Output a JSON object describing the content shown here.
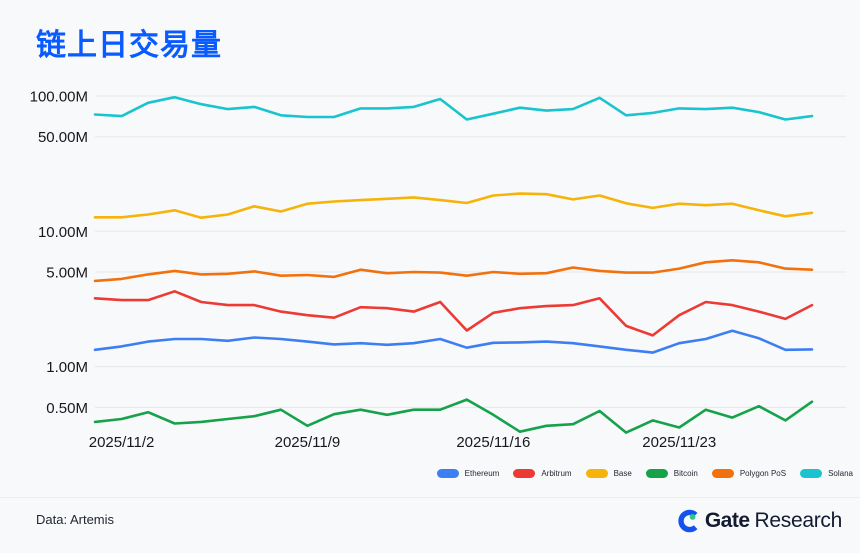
{
  "page": {
    "title": "链上日交易量",
    "background_color": "#F8F9FB",
    "title_color": "#0A5BFF"
  },
  "chart_data": {
    "type": "line",
    "y_scale": "log",
    "grid": "horizontal-only",
    "legend_position": "bottom-right",
    "value_unit": "M",
    "dates": [
      "2025/11/1",
      "2025/11/2",
      "2025/11/3",
      "2025/11/4",
      "2025/11/5",
      "2025/11/6",
      "2025/11/7",
      "2025/11/8",
      "2025/11/9",
      "2025/11/10",
      "2025/11/11",
      "2025/11/12",
      "2025/11/13",
      "2025/11/14",
      "2025/11/15",
      "2025/11/16",
      "2025/11/17",
      "2025/11/18",
      "2025/11/19",
      "2025/11/20",
      "2025/11/21",
      "2025/11/22",
      "2025/11/23",
      "2025/11/24",
      "2025/11/25",
      "2025/11/26",
      "2025/11/27",
      "2025/11/28"
    ],
    "x_ticks": [
      {
        "label": "2025/11/2",
        "index": 1
      },
      {
        "label": "2025/11/9",
        "index": 8
      },
      {
        "label": "2025/11/16",
        "index": 15
      },
      {
        "label": "2025/11/23",
        "index": 22
      }
    ],
    "y_ticks": [
      {
        "label": "100.00M",
        "value_m": 100
      },
      {
        "label": "50.00M",
        "value_m": 50
      },
      {
        "label": "10.00M",
        "value_m": 10
      },
      {
        "label": "5.00M",
        "value_m": 5
      },
      {
        "label": "1.00M",
        "value_m": 1
      },
      {
        "label": "0.50M",
        "value_m": 0.5
      }
    ],
    "series": [
      {
        "name": "Ethereum",
        "color": "#3D7FF2",
        "values_m": [
          1.33,
          1.41,
          1.53,
          1.6,
          1.6,
          1.55,
          1.64,
          1.6,
          1.53,
          1.46,
          1.49,
          1.45,
          1.49,
          1.6,
          1.38,
          1.5,
          1.51,
          1.53,
          1.49,
          1.41,
          1.33,
          1.27,
          1.49,
          1.6,
          1.84,
          1.62,
          1.33,
          1.34
        ]
      },
      {
        "name": "Arbitrum",
        "color": "#EC3B35",
        "values_m": [
          3.2,
          3.1,
          3.1,
          3.6,
          3.0,
          2.85,
          2.85,
          2.55,
          2.4,
          2.3,
          2.75,
          2.7,
          2.55,
          3.0,
          1.85,
          2.5,
          2.7,
          2.8,
          2.85,
          3.2,
          2.0,
          1.7,
          2.4,
          3.0,
          2.85,
          2.55,
          2.25,
          2.85
        ]
      },
      {
        "name": "Base",
        "color": "#F6B40A",
        "values_m": [
          12.7,
          12.7,
          13.3,
          14.3,
          12.6,
          13.3,
          15.3,
          14.0,
          16.0,
          16.6,
          17.0,
          17.4,
          17.8,
          17.0,
          16.2,
          18.4,
          19.0,
          18.8,
          17.2,
          18.4,
          16.1,
          14.9,
          16.0,
          15.6,
          16.0,
          14.3,
          12.9,
          13.7
        ]
      },
      {
        "name": "Bitcoin",
        "color": "#16A24A",
        "values_m": [
          0.39,
          0.41,
          0.46,
          0.38,
          0.39,
          0.41,
          0.43,
          0.48,
          0.365,
          0.445,
          0.48,
          0.44,
          0.48,
          0.48,
          0.57,
          0.44,
          0.33,
          0.365,
          0.375,
          0.47,
          0.325,
          0.4,
          0.355,
          0.48,
          0.42,
          0.51,
          0.4,
          0.55
        ]
      },
      {
        "name": "Polygon PoS",
        "color": "#F3710D",
        "values_m": [
          4.3,
          4.45,
          4.8,
          5.1,
          4.8,
          4.85,
          5.05,
          4.7,
          4.75,
          4.6,
          5.2,
          4.9,
          5.0,
          4.95,
          4.7,
          5.0,
          4.85,
          4.9,
          5.4,
          5.1,
          4.95,
          4.95,
          5.3,
          5.9,
          6.1,
          5.9,
          5.3,
          5.2
        ]
      },
      {
        "name": "Solana",
        "color": "#1AC4CE",
        "values_m": [
          73,
          71,
          89,
          98,
          87,
          80,
          83,
          72,
          70,
          70,
          81,
          81,
          83,
          95,
          67,
          74,
          82,
          78,
          80,
          97,
          72,
          75,
          81,
          80,
          82,
          76,
          67,
          71
        ]
      }
    ],
    "title": "链上日交易量",
    "xlabel": "",
    "ylabel": ""
  },
  "footer": {
    "source": "Data: Artemis",
    "brand_bold": "Gate",
    "brand_regular": "Research"
  }
}
